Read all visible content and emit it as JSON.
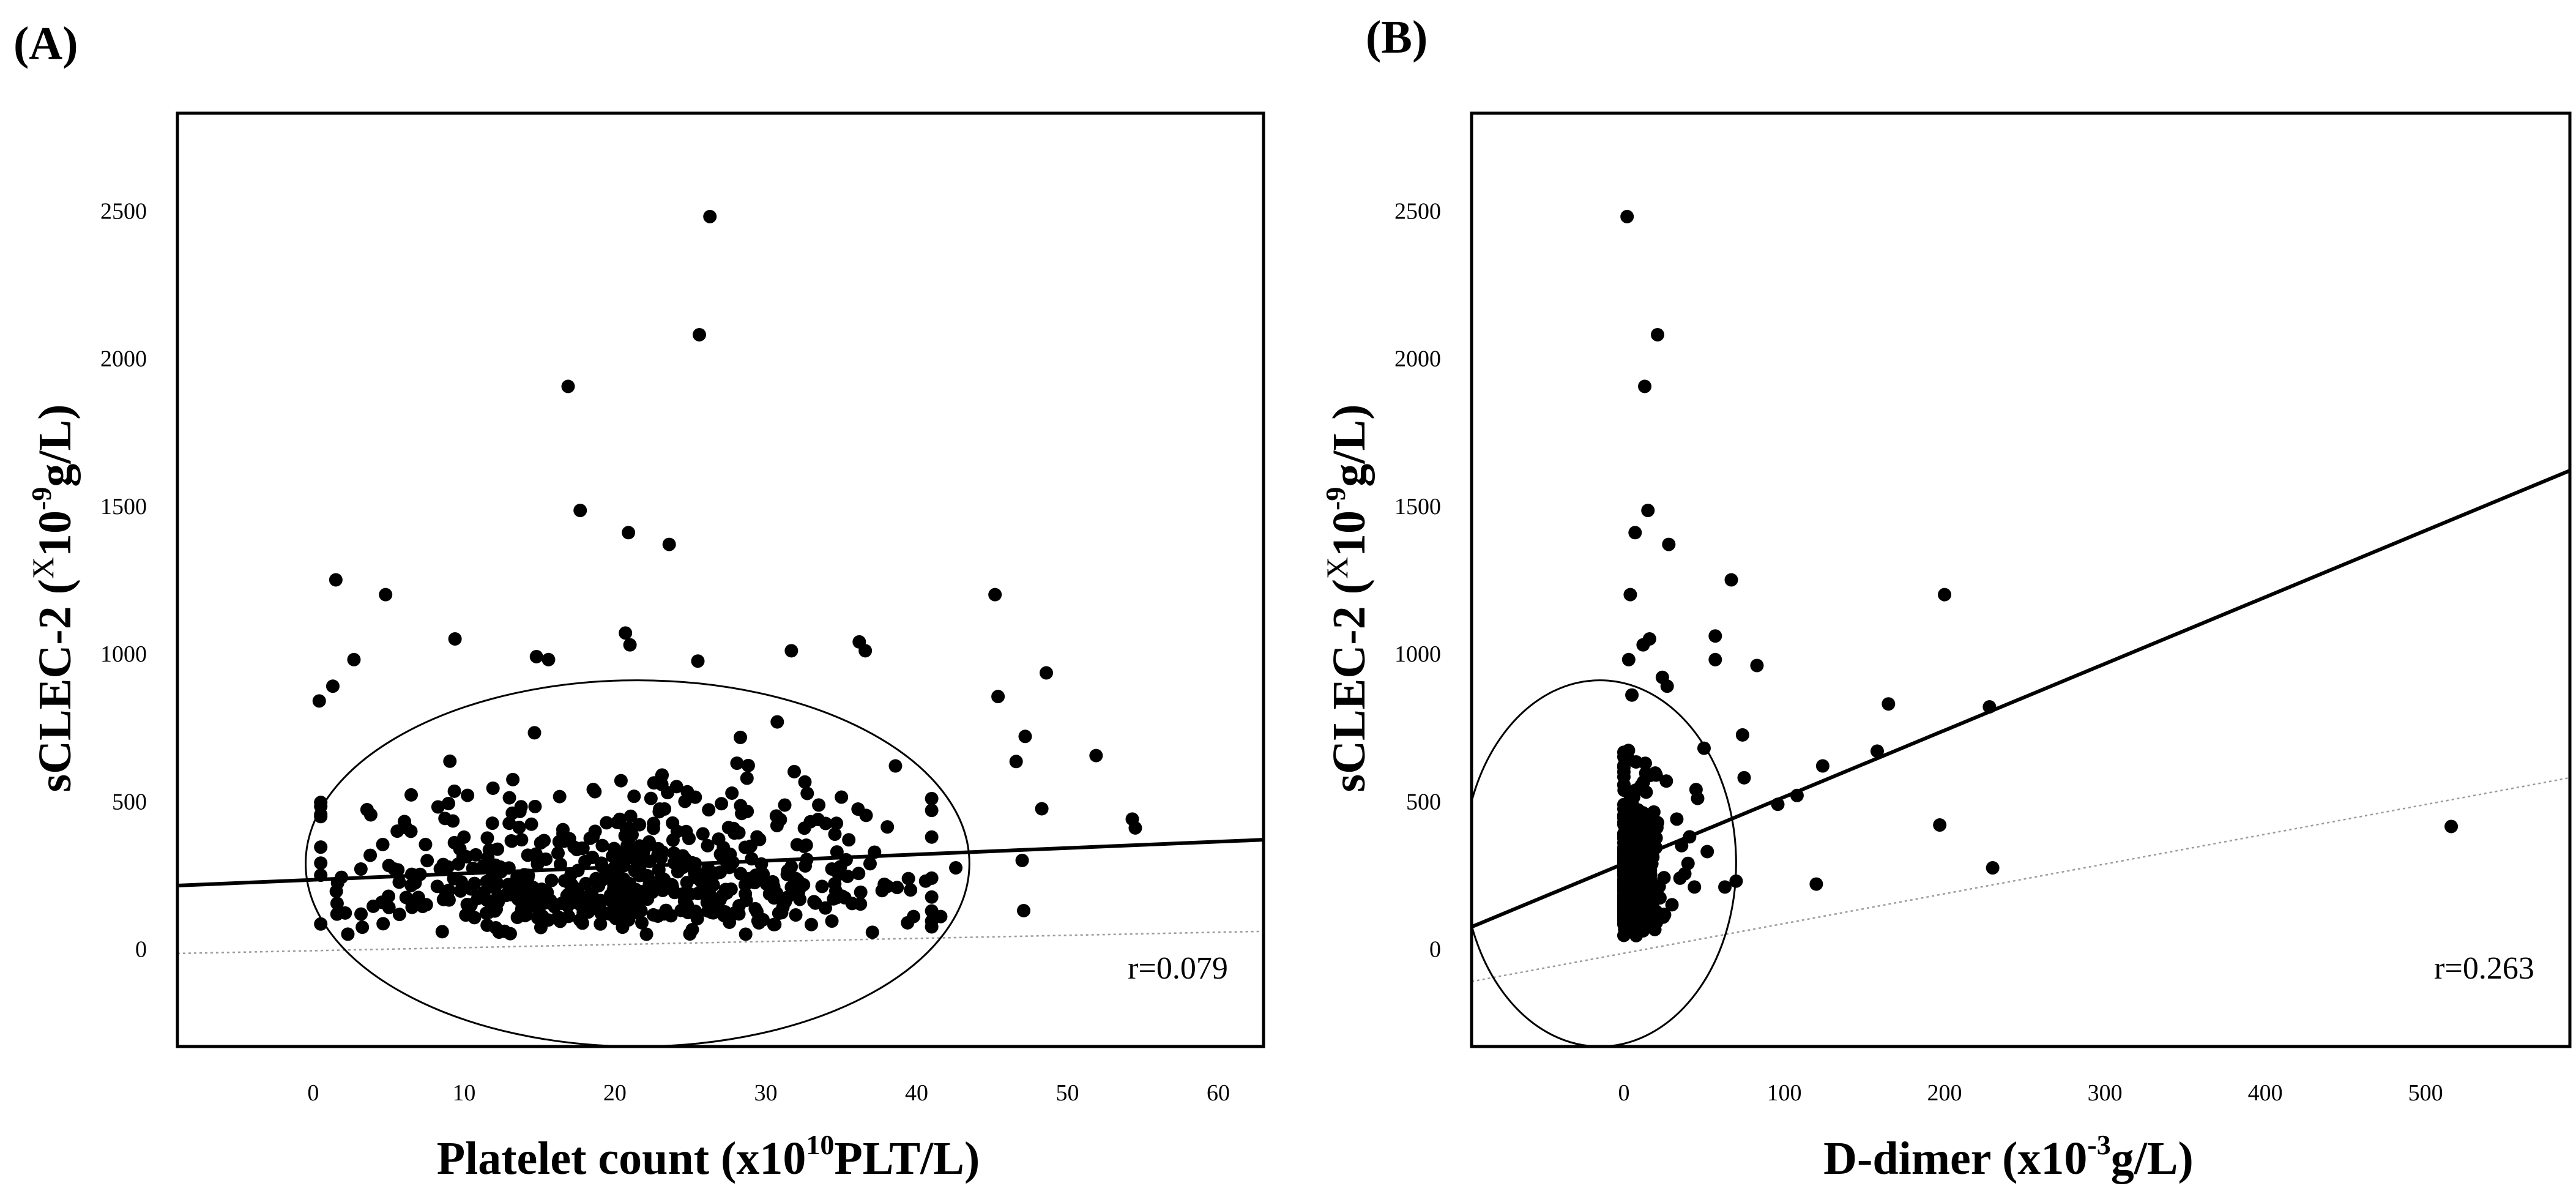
{
  "chart_data": [
    {
      "panel": "(A)",
      "type": "scatter",
      "xlabel": "Platelet count (x10^10PLT/L)",
      "xlabel_parts": {
        "pre": "Platelet count (x10",
        "sup": "10",
        "post": "PLT/L)"
      },
      "ylabel": "sCLEC-2 (X10^-9g/L)",
      "ylabel_parts": {
        "pre": "sCLEC-2 (",
        "x": "X",
        "ten": "10",
        "sup": "-9",
        "post": "g/L)"
      },
      "xlim": [
        -9,
        63
      ],
      "ylim": [
        -330,
        2830
      ],
      "xticks": [
        0,
        10,
        20,
        30,
        40,
        50,
        60
      ],
      "yticks": [
        0,
        500,
        1000,
        1500,
        2000,
        2500
      ],
      "r_label": "r=0.079",
      "regression_line": {
        "x": [
          -9,
          63
        ],
        "y": [
          215,
          370
        ]
      },
      "reference_line": {
        "x": [
          -9,
          63
        ],
        "y": [
          -15,
          60
        ]
      },
      "ellipse": {
        "cx": 21.5,
        "cy": 290,
        "rx": 22,
        "ry": 620
      },
      "cluster": {
        "x_center": 21,
        "x_spread": 9.5,
        "x_min": 0.5,
        "x_max": 41,
        "y_base": 40,
        "y_scale": 210,
        "y_max": 900,
        "count": 560,
        "seed": 11
      },
      "points": [
        [
          26.3,
          2480
        ],
        [
          25.6,
          2080
        ],
        [
          16.9,
          1905
        ],
        [
          17.7,
          1485
        ],
        [
          20.9,
          1410
        ],
        [
          23.6,
          1370
        ],
        [
          1.5,
          1250
        ],
        [
          4.8,
          1200
        ],
        [
          45.2,
          1200
        ],
        [
          9.4,
          1050
        ],
        [
          20.7,
          1070
        ],
        [
          21.0,
          1030
        ],
        [
          36.2,
          1040
        ],
        [
          36.6,
          1010
        ],
        [
          31.7,
          1010
        ],
        [
          14.8,
          990
        ],
        [
          15.6,
          980
        ],
        [
          25.5,
          975
        ],
        [
          2.7,
          980
        ],
        [
          48.6,
          935
        ],
        [
          1.3,
          890
        ],
        [
          0.4,
          840
        ],
        [
          45.4,
          855
        ],
        [
          47.2,
          720
        ],
        [
          46.6,
          635
        ],
        [
          51.9,
          655
        ],
        [
          48.3,
          475
        ],
        [
          54.3,
          440
        ],
        [
          54.5,
          410
        ],
        [
          47.0,
          300
        ],
        [
          47.1,
          130
        ],
        [
          42.6,
          275
        ],
        [
          41.0,
          240
        ],
        [
          40.6,
          230
        ],
        [
          39.6,
          200
        ],
        [
          39.8,
          110
        ],
        [
          41.6,
          110
        ],
        [
          38.6,
          620
        ]
      ]
    },
    {
      "panel": "(B)",
      "type": "scatter",
      "xlabel": "D-dimer (x10^-3g/L)",
      "xlabel_parts": {
        "pre": "D-dimer (x10",
        "sup": "-3",
        "post": "g/L)"
      },
      "ylabel": "sCLEC-2 (X10^-9g/L)",
      "ylabel_parts": {
        "pre": "sCLEC-2 (",
        "x": "X",
        "ten": "10",
        "sup": "-9",
        "post": "g/L)"
      },
      "xlim": [
        -95,
        590
      ],
      "ylim": [
        -330,
        2830
      ],
      "xticks": [
        0,
        100,
        200,
        300,
        400,
        500
      ],
      "yticks": [
        0,
        500,
        1000,
        1500,
        2000,
        2500
      ],
      "r_label": "r=0.263",
      "regression_line": {
        "x": [
          -95,
          590
        ],
        "y": [
          75,
          1620
        ]
      },
      "reference_line": {
        "x": [
          -95,
          590
        ],
        "y": [
          -110,
          580
        ]
      },
      "ellipse": {
        "cx": -15,
        "cy": 290,
        "rx": 85,
        "ry": 620
      },
      "cluster": {
        "x_center": 6,
        "x_spread": 8,
        "x_min": 0,
        "x_max": 30,
        "y_base": 40,
        "y_scale": 220,
        "y_max": 900,
        "count": 420,
        "seed": 23
      },
      "points": [
        [
          2,
          2480
        ],
        [
          21,
          2080
        ],
        [
          13,
          1905
        ],
        [
          15,
          1485
        ],
        [
          7,
          1410
        ],
        [
          28,
          1370
        ],
        [
          4,
          1200
        ],
        [
          67,
          1250
        ],
        [
          200,
          1200
        ],
        [
          16,
          1050
        ],
        [
          12,
          1030
        ],
        [
          57,
          1060
        ],
        [
          57,
          980
        ],
        [
          83,
          960
        ],
        [
          3,
          980
        ],
        [
          27,
          890
        ],
        [
          5,
          860
        ],
        [
          24,
          920
        ],
        [
          165,
          830
        ],
        [
          228,
          820
        ],
        [
          74,
          725
        ],
        [
          50,
          680
        ],
        [
          124,
          620
        ],
        [
          158,
          670
        ],
        [
          75,
          580
        ],
        [
          96,
          490
        ],
        [
          108,
          520
        ],
        [
          197,
          420
        ],
        [
          516,
          415
        ],
        [
          230,
          275
        ],
        [
          120,
          220
        ],
        [
          70,
          230
        ],
        [
          63,
          210
        ],
        [
          44,
          210
        ],
        [
          35,
          240
        ],
        [
          52,
          330
        ],
        [
          40,
          290
        ],
        [
          30,
          150
        ],
        [
          33,
          440
        ],
        [
          46,
          510
        ],
        [
          41,
          380
        ],
        [
          36,
          350
        ],
        [
          38,
          255
        ],
        [
          45,
          540
        ]
      ]
    }
  ]
}
